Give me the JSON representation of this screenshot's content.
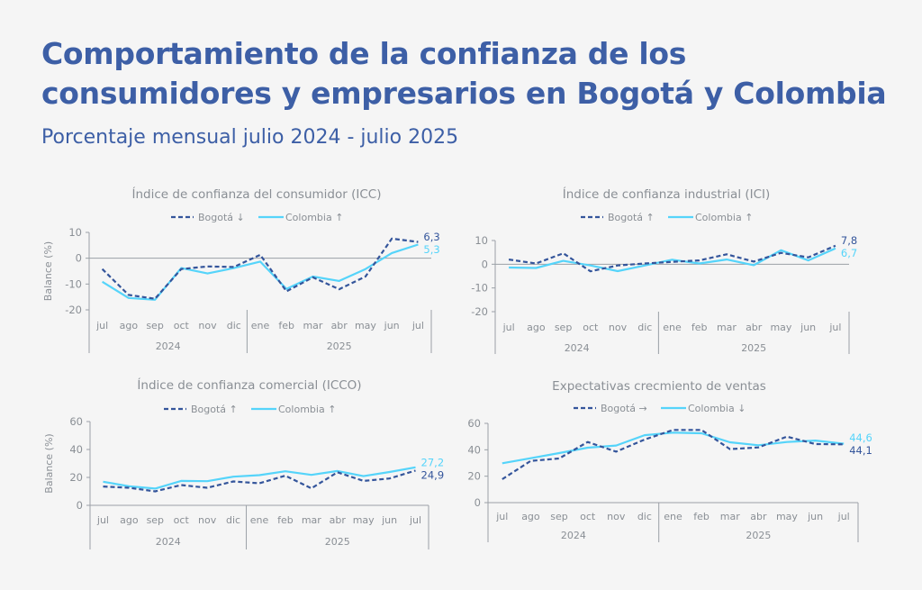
{
  "header": {
    "title": "Comportamiento de la confianza de los consumidores y empresarios en Bogotá y Colombia",
    "subtitle": "Porcentaje mensual julio 2024 - julio 2025"
  },
  "colors": {
    "title": "#3d5fa6",
    "bogota": "#34559b",
    "colombia": "#55d4fa",
    "axis": "#9aa0a6",
    "text": "#8a8f95"
  },
  "chart_data": [
    {
      "type": "line",
      "title": "Índice de confianza del consumidor (ICC)",
      "ylabel": "Balance (%)",
      "ylim": [
        -20,
        10
      ],
      "yticks": [
        10,
        0,
        -10,
        -20
      ],
      "categories": [
        "jul",
        "ago",
        "sep",
        "oct",
        "nov",
        "dic",
        "ene",
        "feb",
        "mar",
        "abr",
        "may",
        "jun",
        "jul"
      ],
      "groups": [
        {
          "label": "2024",
          "count": 6
        },
        {
          "label": "2025",
          "count": 7
        }
      ],
      "series": [
        {
          "name": "Bogotá ↓",
          "style": "dashed",
          "values": [
            -4.2,
            -14.2,
            -15.7,
            -4.2,
            -3.2,
            -3.4,
            1.3,
            -12.8,
            -7.4,
            -12.0,
            -7.1,
            7.6,
            6.3
          ],
          "end_label": "6,3"
        },
        {
          "name": "Colombia ↑",
          "style": "solid",
          "values": [
            -9.1,
            -15.4,
            -16.1,
            -3.8,
            -5.9,
            -3.8,
            -1.3,
            -11.9,
            -7.1,
            -8.8,
            -4.2,
            2.0,
            5.3
          ],
          "end_label": "5,3"
        }
      ],
      "zero_line": true,
      "grid": false,
      "legend": "top"
    },
    {
      "type": "line",
      "title": "Índice de confianza industrial (ICI)",
      "ylabel": "",
      "ylim": [
        -20,
        10
      ],
      "yticks": [
        10,
        0,
        -10,
        -20
      ],
      "categories": [
        "jul",
        "ago",
        "sep",
        "oct",
        "nov",
        "dic",
        "ene",
        "feb",
        "mar",
        "abr",
        "may",
        "jun",
        "jul"
      ],
      "groups": [
        {
          "label": "2024",
          "count": 6
        },
        {
          "label": "2025",
          "count": 7
        }
      ],
      "series": [
        {
          "name": "Bogotá ↑",
          "style": "dashed",
          "values": [
            2.0,
            0.3,
            4.6,
            -3.0,
            -0.5,
            0.3,
            1.0,
            1.6,
            4.2,
            1.1,
            4.8,
            2.9,
            7.8
          ],
          "end_label": "7,8"
        },
        {
          "name": "Colombia ↑",
          "style": "solid",
          "values": [
            -1.4,
            -1.6,
            1.4,
            -0.5,
            -2.9,
            -0.5,
            1.9,
            0.3,
            2.0,
            -0.4,
            5.9,
            1.6,
            6.7
          ],
          "end_label": "6,7"
        }
      ],
      "zero_line": true,
      "grid": false,
      "legend": "top"
    },
    {
      "type": "line",
      "title": "Índice de confianza comercial (ICCO)",
      "ylabel": "Balance (%)",
      "ylim": [
        0,
        60
      ],
      "yticks": [
        60,
        40,
        20,
        0
      ],
      "categories": [
        "jul",
        "ago",
        "sep",
        "oct",
        "nov",
        "dic",
        "ene",
        "feb",
        "mar",
        "abr",
        "may",
        "jun",
        "jul"
      ],
      "groups": [
        {
          "label": "2024",
          "count": 6
        },
        {
          "label": "2025",
          "count": 7
        }
      ],
      "series": [
        {
          "name": "Bogotá ↑",
          "style": "dashed",
          "values": [
            13.5,
            12.6,
            10.0,
            14.5,
            12.6,
            17.1,
            15.8,
            21.2,
            12.2,
            23.7,
            17.5,
            19.2,
            24.9
          ],
          "end_label": "24,9"
        },
        {
          "name": "Colombia ↑",
          "style": "solid",
          "values": [
            16.9,
            13.7,
            12.0,
            17.5,
            17.3,
            20.5,
            21.6,
            24.4,
            21.8,
            24.6,
            20.9,
            23.9,
            27.2
          ],
          "end_label": "27,2"
        }
      ],
      "zero_line": false,
      "grid": false,
      "legend": "top"
    },
    {
      "type": "line",
      "title": "Expectativas crecmiento de ventas",
      "ylabel": "",
      "ylim": [
        0,
        60
      ],
      "yticks": [
        60,
        40,
        20,
        0
      ],
      "categories": [
        "jul",
        "ago",
        "sep",
        "oct",
        "nov",
        "dic",
        "ene",
        "feb",
        "mar",
        "abr",
        "may",
        "jun",
        "jul"
      ],
      "groups": [
        {
          "label": "2024",
          "count": 6
        },
        {
          "label": "2025",
          "count": 7
        }
      ],
      "series": [
        {
          "name": "Bogotá →",
          "style": "dashed",
          "values": [
            17.7,
            31.6,
            33.4,
            45.9,
            38.6,
            47.7,
            55.0,
            55.0,
            40.5,
            41.8,
            50.0,
            44.3,
            44.1
          ],
          "end_label": "44,1"
        },
        {
          "name": "Colombia ↓",
          "style": "solid",
          "values": [
            29.8,
            33.6,
            37.5,
            41.6,
            43.2,
            51.1,
            53.0,
            52.5,
            45.7,
            43.4,
            45.9,
            47.0,
            44.6
          ],
          "end_label": "44,6"
        }
      ],
      "zero_line": false,
      "grid": false,
      "legend": "top"
    }
  ]
}
